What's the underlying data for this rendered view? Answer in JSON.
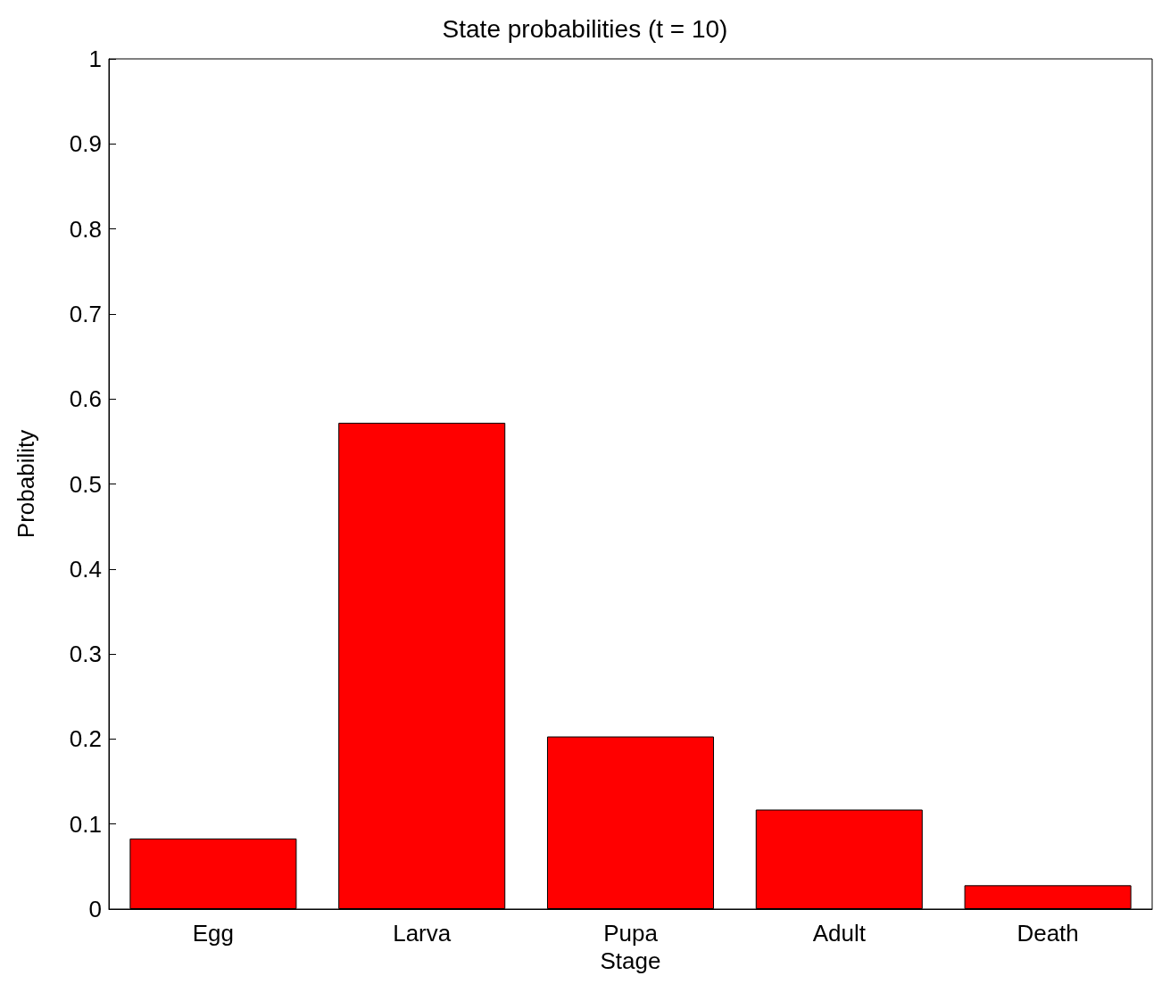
{
  "chart_data": {
    "type": "bar",
    "title": "State probabilities (t = 10)",
    "xlabel": "Stage",
    "ylabel": "Probability",
    "categories": [
      "Egg",
      "Larva",
      "Pupa",
      "Adult",
      "Death"
    ],
    "values": [
      0.083,
      0.572,
      0.203,
      0.117,
      0.028
    ],
    "color": "#ff0000",
    "ylim": [
      0,
      1
    ],
    "yticks": [
      0,
      0.1,
      0.2,
      0.3,
      0.4,
      0.5,
      0.6,
      0.7,
      0.8,
      0.9,
      1
    ],
    "grid": false
  }
}
